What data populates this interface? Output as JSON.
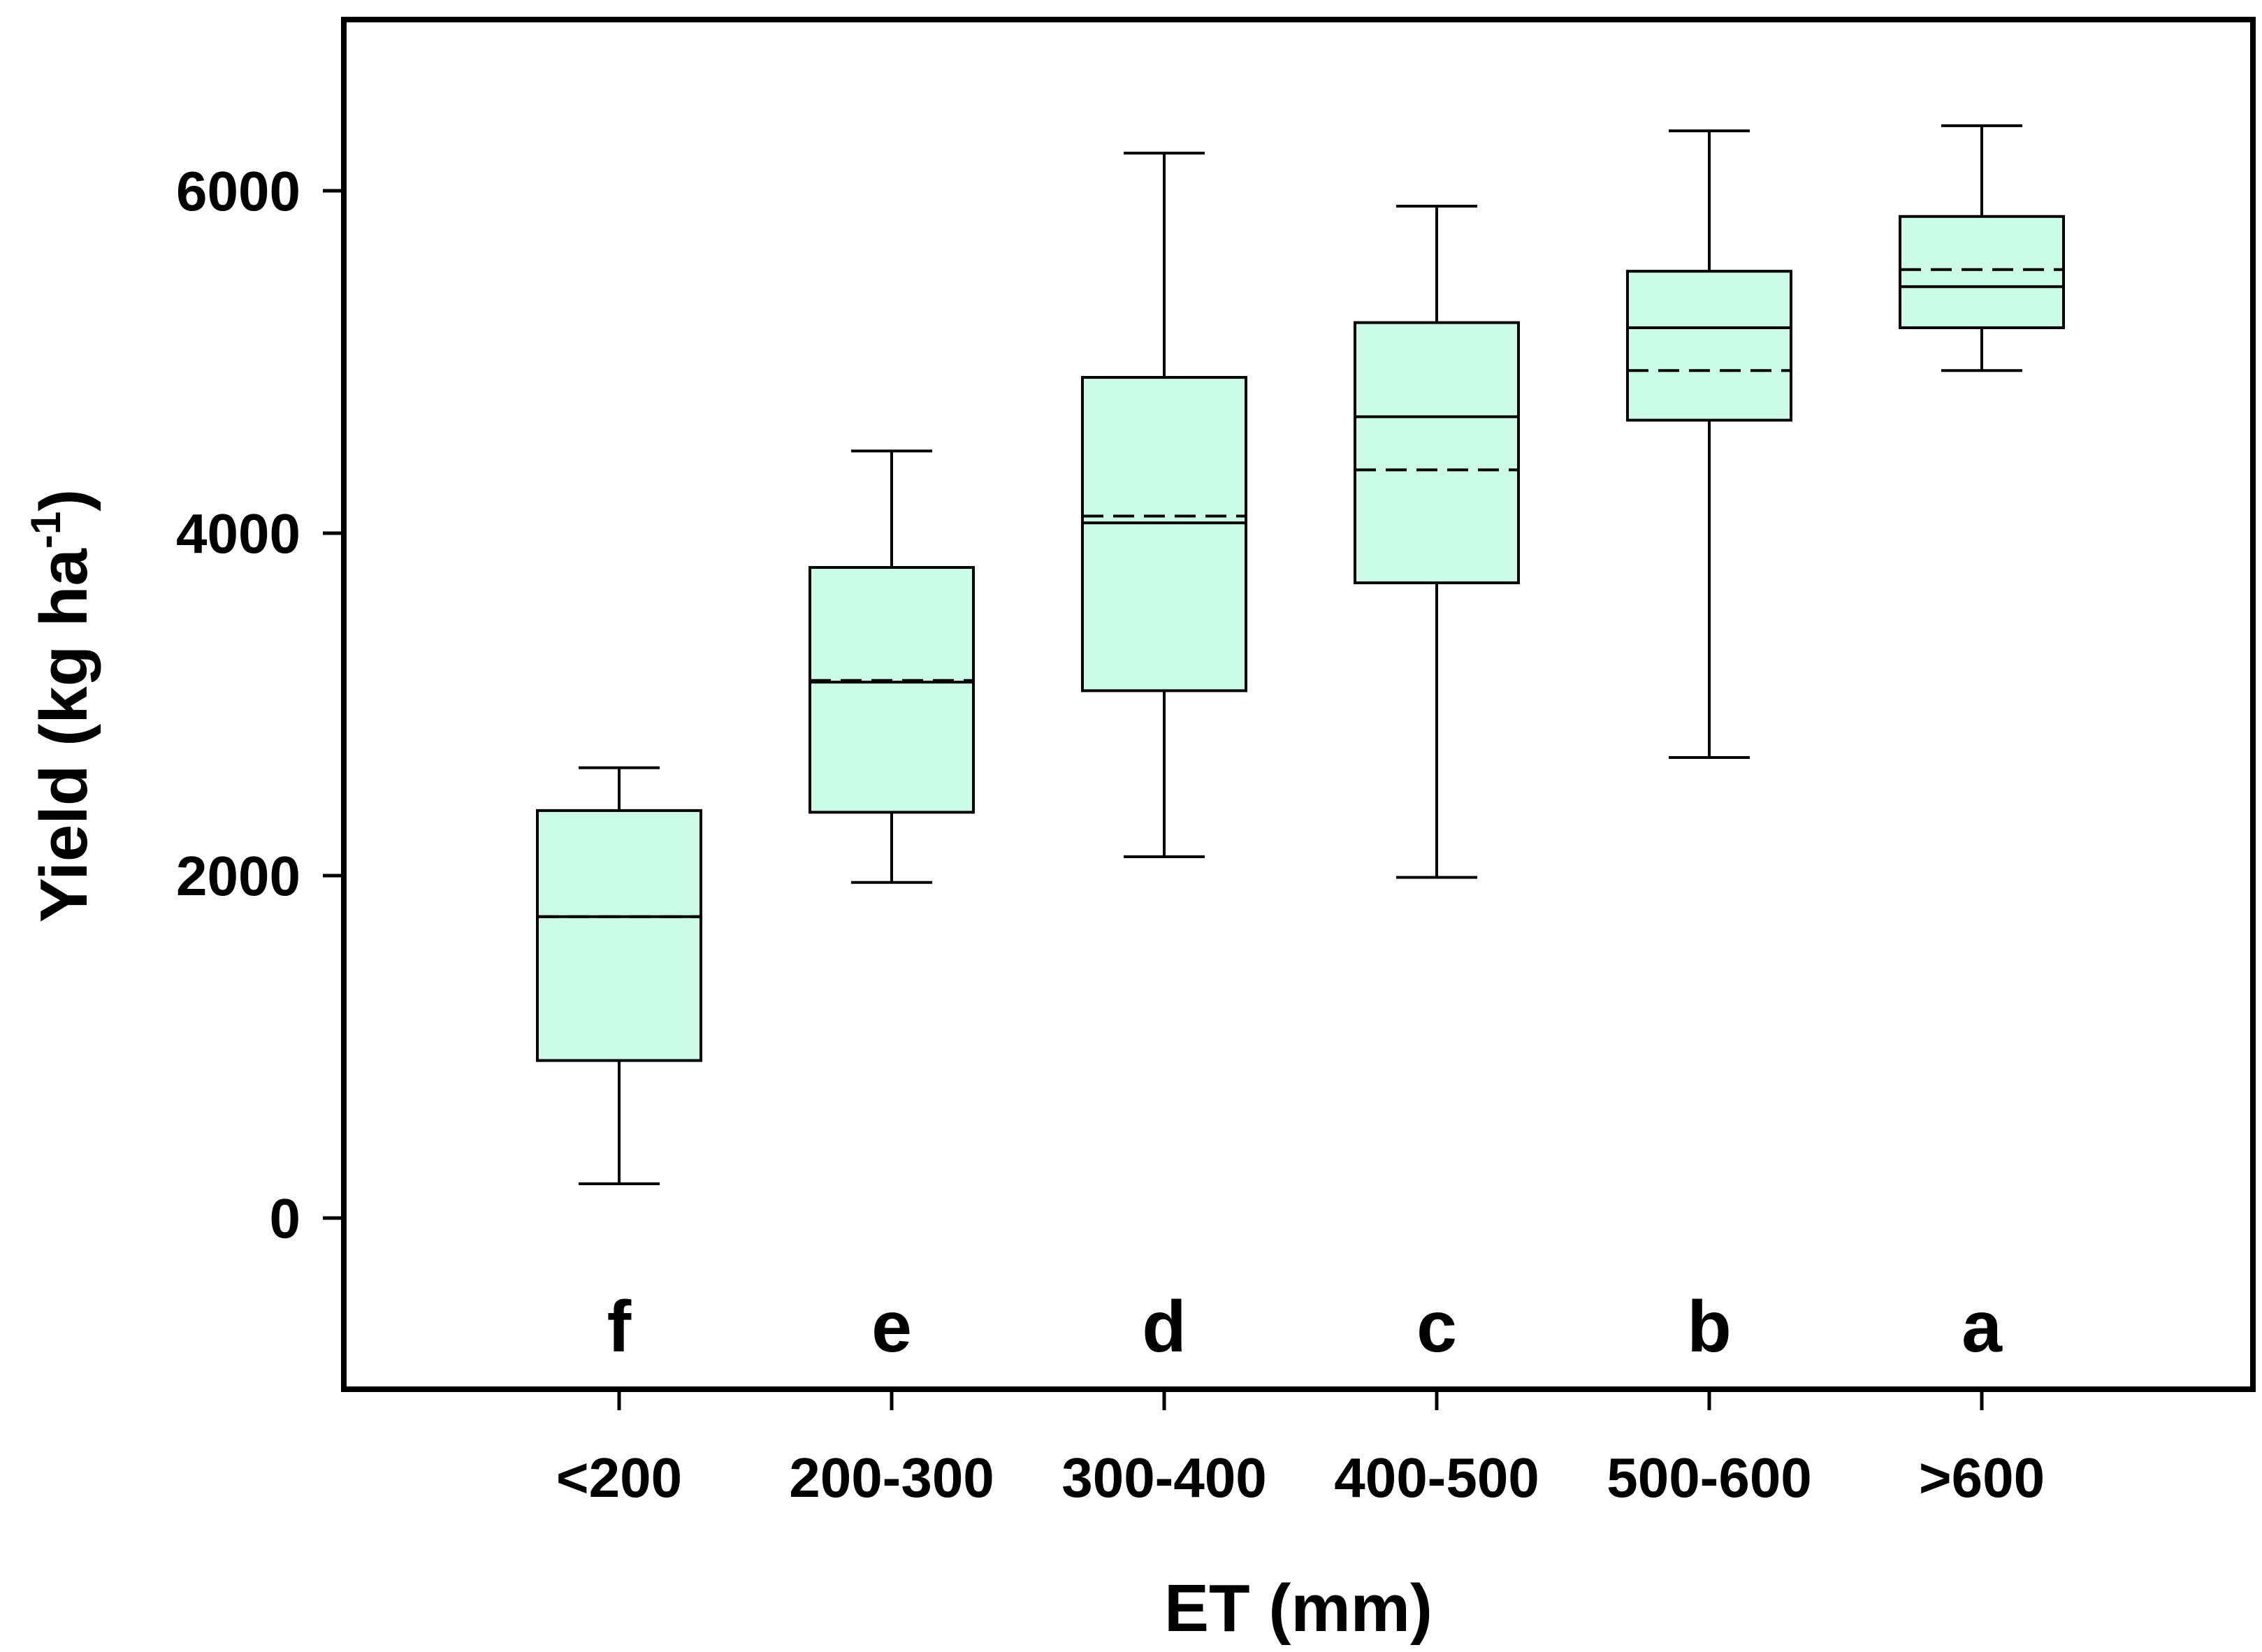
{
  "chart_data": {
    "type": "box",
    "xlabel": "ET (mm)",
    "ylabel_main": "Yield (kg ha",
    "ylabel_sup": "-1",
    "ylabel_close": ")",
    "ylim": [
      -1000,
      7000
    ],
    "yticks": [
      0,
      2000,
      4000,
      6000
    ],
    "ytick_labels": [
      "0",
      "2000",
      "4000",
      "6000"
    ],
    "box_fill": "#ccfbe8",
    "line_color": "#000000",
    "categories": [
      "<200",
      "200-300",
      "300-400",
      "400-500",
      "500-600",
      ">600"
    ],
    "significance_letters": [
      "f",
      "e",
      "d",
      "c",
      "b",
      "a"
    ],
    "boxes": [
      {
        "whisker_low": 200,
        "q1": 920,
        "median": 1760,
        "mean": 1760,
        "q3": 2380,
        "whisker_high": 2630
      },
      {
        "whisker_low": 1960,
        "q1": 2370,
        "median": 3130,
        "mean": 3140,
        "q3": 3800,
        "whisker_high": 4480
      },
      {
        "whisker_low": 2110,
        "q1": 3080,
        "median": 4060,
        "mean": 4100,
        "q3": 4910,
        "whisker_high": 6220
      },
      {
        "whisker_low": 1990,
        "q1": 3710,
        "median": 4680,
        "mean": 4370,
        "q3": 5230,
        "whisker_high": 5910
      },
      {
        "whisker_low": 2690,
        "q1": 4660,
        "median": 5200,
        "mean": 4950,
        "q3": 5530,
        "whisker_high": 6350
      },
      {
        "whisker_low": 4950,
        "q1": 5200,
        "median": 5440,
        "mean": 5540,
        "q3": 5850,
        "whisker_high": 6380
      }
    ]
  }
}
